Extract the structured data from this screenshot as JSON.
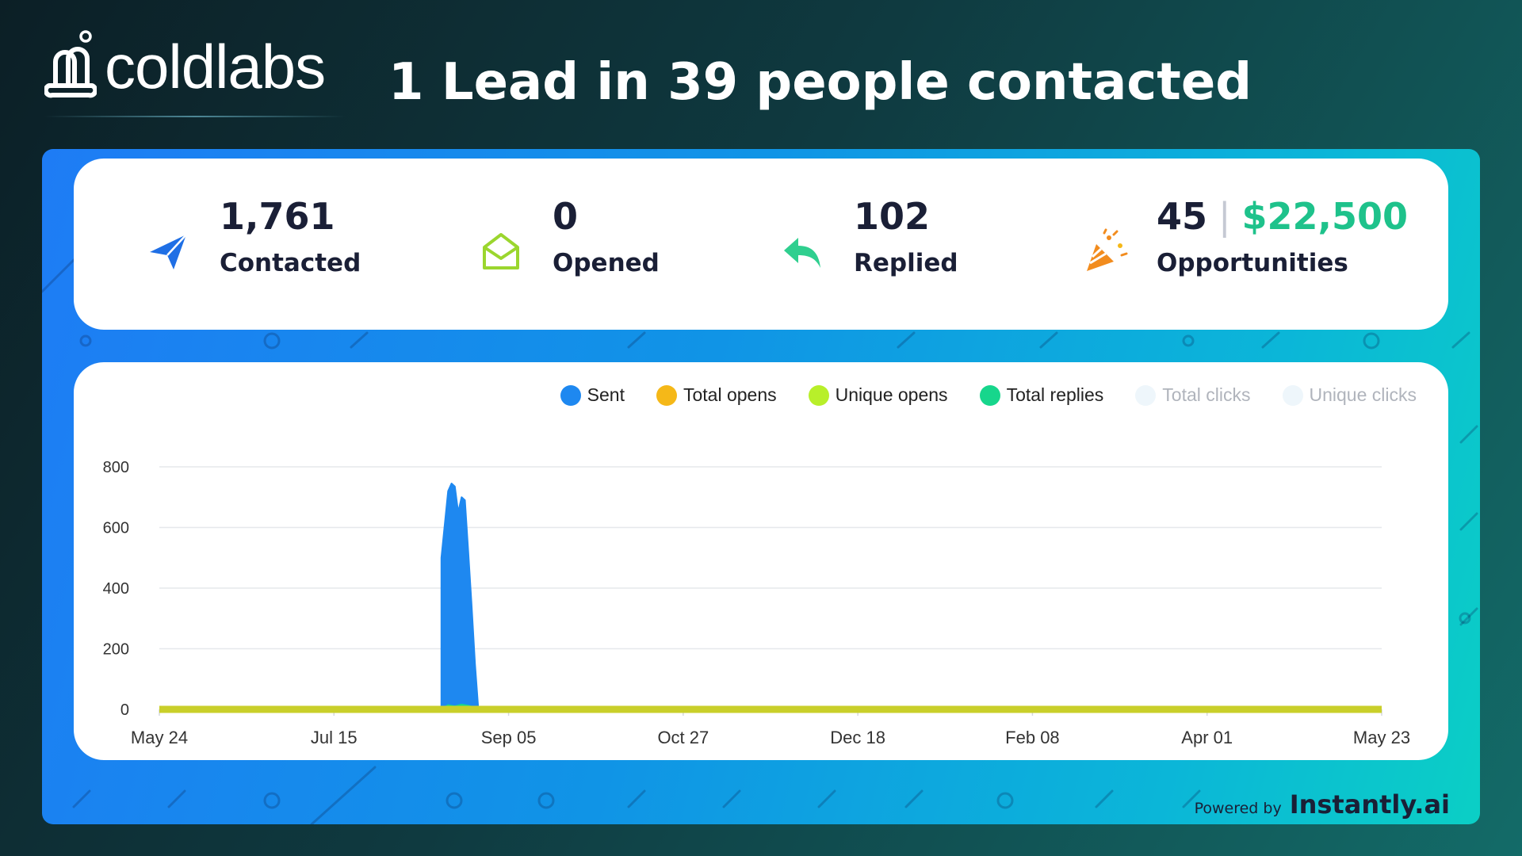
{
  "brand": {
    "name": "coldlabs"
  },
  "headline": "1 Lead in 39 people contacted",
  "stats": [
    {
      "value": "1,761",
      "label": "Contacted",
      "icon": "paper-plane-icon",
      "color": "#1f6fe5"
    },
    {
      "value": "0",
      "label": "Opened",
      "icon": "envelope-open-icon",
      "color": "#9bd62e"
    },
    {
      "value": "102",
      "label": "Replied",
      "icon": "reply-arrow-icon",
      "color": "#2fcf8f"
    },
    {
      "value": "45",
      "money": "$22,500",
      "label": "Opportunities",
      "icon": "party-popper-icon",
      "color": "#f28c1e"
    }
  ],
  "legend": [
    {
      "name": "Sent",
      "color": "#1e88f0",
      "muted": false
    },
    {
      "name": "Total opens",
      "color": "#f5b818",
      "muted": false
    },
    {
      "name": "Unique opens",
      "color": "#b8ef2a",
      "muted": false
    },
    {
      "name": "Total replies",
      "color": "#17d68c",
      "muted": false
    },
    {
      "name": "Total clicks",
      "color": "#eef6fb",
      "muted": true
    },
    {
      "name": "Unique clicks",
      "color": "#eef6fb",
      "muted": true
    }
  ],
  "chart_data": {
    "type": "area",
    "x_labels": [
      "May 24",
      "Jul 15",
      "Sep 05",
      "Oct 27",
      "Dec 18",
      "Feb 08",
      "Apr 01",
      "May 23"
    ],
    "y_ticks": [
      0,
      200,
      400,
      600,
      800
    ],
    "ylim": [
      0,
      800
    ],
    "x_range_days": 364,
    "series": [
      {
        "name": "Sent",
        "color": "#1e88f0",
        "points": [
          [
            84,
            0
          ],
          [
            84,
            500
          ],
          [
            86,
            720
          ],
          [
            87,
            745
          ],
          [
            88,
            735
          ],
          [
            89,
            650
          ],
          [
            90,
            700
          ],
          [
            91,
            690
          ],
          [
            92,
            520
          ],
          [
            93,
            340
          ],
          [
            94,
            150
          ],
          [
            95,
            0
          ]
        ]
      },
      {
        "name": "Total replies",
        "color": "#17d68c",
        "points": [
          [
            84,
            0
          ],
          [
            86,
            14
          ],
          [
            88,
            10
          ],
          [
            90,
            16
          ],
          [
            92,
            12
          ],
          [
            94,
            6
          ],
          [
            96,
            0
          ],
          [
            100,
            5
          ],
          [
            102,
            0
          ],
          [
            140,
            4
          ],
          [
            142,
            0
          ],
          [
            152,
            6
          ],
          [
            154,
            0
          ],
          [
            170,
            5
          ],
          [
            172,
            0
          ],
          [
            180,
            0
          ]
        ]
      },
      {
        "name": "Unique opens",
        "color": "#c9cf2a",
        "points": [
          [
            0,
            0
          ],
          [
            364,
            0
          ]
        ]
      }
    ]
  },
  "footer": {
    "powered_label": "Powered by",
    "powered_brand": "Instantly.ai"
  }
}
